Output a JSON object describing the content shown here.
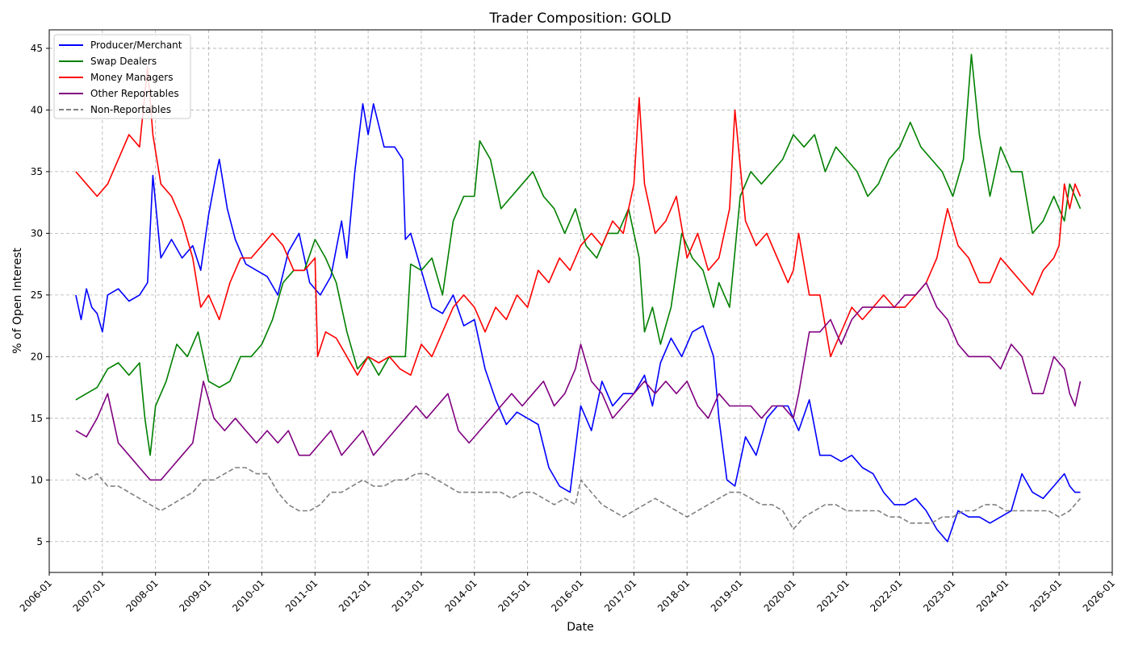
{
  "chart_data": {
    "type": "line",
    "title": "Trader Composition: GOLD",
    "xlabel": "Date",
    "ylabel": "% of Open Interest",
    "xlim": [
      2006.0,
      2026.0
    ],
    "ylim": [
      2.5,
      46.5
    ],
    "x_ticks": [
      "2006-01",
      "2007-01",
      "2008-01",
      "2009-01",
      "2010-01",
      "2011-01",
      "2012-01",
      "2013-01",
      "2014-01",
      "2015-01",
      "2016-01",
      "2017-01",
      "2018-01",
      "2019-01",
      "2020-01",
      "2021-01",
      "2022-01",
      "2023-01",
      "2024-01",
      "2025-01",
      "2026-01"
    ],
    "y_ticks": [
      5,
      10,
      15,
      20,
      25,
      30,
      35,
      40,
      45
    ],
    "grid": true,
    "legend_position": "top-left",
    "series": [
      {
        "name": "Producer/Merchant",
        "color": "#0000ff",
        "dash": "solid",
        "x": [
          2006.5,
          2006.6,
          2006.7,
          2006.8,
          2006.9,
          2007.0,
          2007.1,
          2007.3,
          2007.5,
          2007.7,
          2007.85,
          2007.95,
          2008.1,
          2008.3,
          2008.5,
          2008.7,
          2008.85,
          2009.0,
          2009.15,
          2009.2,
          2009.35,
          2009.5,
          2009.7,
          2009.9,
          2010.1,
          2010.3,
          2010.5,
          2010.7,
          2010.9,
          2011.1,
          2011.3,
          2011.5,
          2011.6,
          2011.75,
          2011.9,
          2012.0,
          2012.1,
          2012.3,
          2012.5,
          2012.65,
          2012.7,
          2012.8,
          2013.0,
          2013.2,
          2013.4,
          2013.6,
          2013.8,
          2014.0,
          2014.2,
          2014.4,
          2014.6,
          2014.8,
          2015.0,
          2015.2,
          2015.4,
          2015.6,
          2015.8,
          2016.0,
          2016.2,
          2016.4,
          2016.6,
          2016.8,
          2017.0,
          2017.2,
          2017.35,
          2017.5,
          2017.7,
          2017.9,
          2018.1,
          2018.3,
          2018.5,
          2018.6,
          2018.75,
          2018.9,
          2019.1,
          2019.3,
          2019.5,
          2019.7,
          2019.9,
          2020.1,
          2020.3,
          2020.5,
          2020.7,
          2020.9,
          2021.1,
          2021.3,
          2021.5,
          2021.7,
          2021.9,
          2022.1,
          2022.3,
          2022.5,
          2022.7,
          2022.9,
          2023.1,
          2023.3,
          2023.5,
          2023.7,
          2023.9,
          2024.1,
          2024.3,
          2024.5,
          2024.7,
          2024.9,
          2025.1,
          2025.2,
          2025.3,
          2025.4
        ],
        "values": [
          25,
          23,
          25.5,
          24,
          23.5,
          22,
          25,
          25.5,
          24.5,
          25,
          26,
          34.7,
          28,
          29.5,
          28,
          29,
          27,
          31.5,
          35,
          36,
          32,
          29.5,
          27.5,
          27,
          26.5,
          25,
          28.5,
          30,
          26,
          25,
          26.5,
          31,
          28,
          35,
          40.5,
          38,
          40.5,
          37,
          37,
          36,
          29.5,
          30,
          27,
          24,
          23.5,
          25,
          22.5,
          23,
          19,
          16.5,
          14.5,
          15.5,
          15,
          14.5,
          11,
          9.5,
          9,
          16,
          14,
          18,
          16,
          17,
          17,
          18.5,
          16,
          19.5,
          21.5,
          20,
          22,
          22.5,
          20,
          15,
          10,
          9.5,
          13.5,
          12,
          15,
          16,
          16,
          14,
          16.5,
          12,
          12,
          11.5,
          12,
          11,
          10.5,
          9,
          8,
          8,
          8.5,
          7.5,
          6,
          5,
          7.5,
          7,
          7,
          6.5,
          7,
          7.5,
          10.5,
          9,
          8.5,
          9.5,
          10.5,
          9.5,
          9,
          9
        ]
      },
      {
        "name": "Swap Dealers",
        "color": "#008000",
        "dash": "solid",
        "x": [
          2006.5,
          2006.7,
          2006.9,
          2007.1,
          2007.3,
          2007.5,
          2007.7,
          2007.8,
          2007.9,
          2008.0,
          2008.2,
          2008.4,
          2008.6,
          2008.8,
          2009.0,
          2009.2,
          2009.4,
          2009.6,
          2009.8,
          2010.0,
          2010.2,
          2010.4,
          2010.6,
          2010.8,
          2011.0,
          2011.2,
          2011.4,
          2011.6,
          2011.8,
          2012.0,
          2012.2,
          2012.4,
          2012.6,
          2012.7,
          2012.8,
          2013.0,
          2013.2,
          2013.4,
          2013.6,
          2013.8,
          2014.0,
          2014.1,
          2014.3,
          2014.5,
          2014.7,
          2014.9,
          2015.1,
          2015.3,
          2015.5,
          2015.7,
          2015.9,
          2016.1,
          2016.3,
          2016.5,
          2016.7,
          2016.9,
          2017.1,
          2017.2,
          2017.35,
          2017.5,
          2017.7,
          2017.9,
          2018.1,
          2018.3,
          2018.5,
          2018.6,
          2018.8,
          2019.0,
          2019.2,
          2019.4,
          2019.6,
          2019.8,
          2020.0,
          2020.2,
          2020.4,
          2020.6,
          2020.8,
          2021.0,
          2021.2,
          2021.4,
          2021.6,
          2021.8,
          2022.0,
          2022.2,
          2022.4,
          2022.6,
          2022.8,
          2023.0,
          2023.2,
          2023.35,
          2023.5,
          2023.7,
          2023.9,
          2024.1,
          2024.3,
          2024.5,
          2024.7,
          2024.9,
          2025.1,
          2025.2,
          2025.3,
          2025.4
        ],
        "values": [
          16.5,
          17,
          17.5,
          19,
          19.5,
          18.5,
          19.5,
          15,
          12,
          16,
          18,
          21,
          20,
          22,
          18,
          17.5,
          18,
          20,
          20,
          21,
          23,
          26,
          27,
          27,
          29.5,
          28,
          26,
          22,
          19,
          20,
          18.5,
          20,
          20,
          20,
          27.5,
          27,
          28,
          25,
          31,
          33,
          33,
          37.5,
          36,
          32,
          33,
          34,
          35,
          33,
          32,
          30,
          32,
          29,
          28,
          30,
          30,
          32,
          28,
          22,
          24,
          21,
          24,
          30,
          28,
          27,
          24,
          26,
          24,
          33,
          35,
          34,
          35,
          36,
          38,
          37,
          38,
          35,
          37,
          36,
          35,
          33,
          34,
          36,
          37,
          39,
          37,
          36,
          35,
          33,
          36,
          44.5,
          38,
          33,
          37,
          35,
          35,
          30,
          31,
          33,
          31,
          34,
          33,
          32
        ]
      },
      {
        "name": "Money Managers",
        "color": "#ff0000",
        "dash": "solid",
        "x": [
          2006.5,
          2006.7,
          2006.9,
          2007.1,
          2007.3,
          2007.5,
          2007.7,
          2007.85,
          2007.95,
          2008.1,
          2008.3,
          2008.5,
          2008.7,
          2008.85,
          2009.0,
          2009.2,
          2009.4,
          2009.6,
          2009.8,
          2010.0,
          2010.2,
          2010.4,
          2010.6,
          2010.8,
          2011.0,
          2011.05,
          2011.2,
          2011.4,
          2011.6,
          2011.8,
          2012.0,
          2012.2,
          2012.4,
          2012.6,
          2012.8,
          2013.0,
          2013.2,
          2013.4,
          2013.6,
          2013.8,
          2014.0,
          2014.2,
          2014.4,
          2014.6,
          2014.8,
          2015.0,
          2015.2,
          2015.4,
          2015.6,
          2015.8,
          2016.0,
          2016.2,
          2016.4,
          2016.6,
          2016.8,
          2017.0,
          2017.1,
          2017.2,
          2017.4,
          2017.6,
          2017.8,
          2018.0,
          2018.2,
          2018.4,
          2018.6,
          2018.8,
          2018.9,
          2019.1,
          2019.3,
          2019.5,
          2019.7,
          2019.9,
          2020.0,
          2020.1,
          2020.3,
          2020.5,
          2020.7,
          2020.9,
          2021.1,
          2021.3,
          2021.5,
          2021.7,
          2021.9,
          2022.1,
          2022.3,
          2022.5,
          2022.7,
          2022.9,
          2023.1,
          2023.3,
          2023.5,
          2023.7,
          2023.9,
          2024.1,
          2024.3,
          2024.5,
          2024.7,
          2024.9,
          2025.0,
          2025.1,
          2025.2,
          2025.3,
          2025.4
        ],
        "values": [
          35,
          34,
          33,
          34,
          36,
          38,
          37,
          43.5,
          38,
          34,
          33,
          31,
          28,
          24,
          25,
          23,
          26,
          28,
          28,
          29,
          30,
          29,
          27,
          27,
          28,
          20,
          22,
          21.5,
          20,
          18.5,
          20,
          19.5,
          20,
          19,
          18.5,
          21,
          20,
          22,
          24,
          25,
          24,
          22,
          24,
          23,
          25,
          24,
          27,
          26,
          28,
          27,
          29,
          30,
          29,
          31,
          30,
          34,
          41,
          34,
          30,
          31,
          33,
          28,
          30,
          27,
          28,
          32,
          40,
          31,
          29,
          30,
          28,
          26,
          27,
          30,
          25,
          25,
          20,
          22,
          24,
          23,
          24,
          25,
          24,
          24,
          25,
          26,
          28,
          32,
          29,
          28,
          26,
          26,
          28,
          27,
          26,
          25,
          27,
          28,
          29,
          34,
          32,
          34,
          33
        ]
      },
      {
        "name": "Other Reportables",
        "color": "#800080",
        "dash": "solid",
        "x": [
          2006.5,
          2006.7,
          2006.9,
          2007.1,
          2007.3,
          2007.5,
          2007.7,
          2007.9,
          2008.1,
          2008.3,
          2008.5,
          2008.7,
          2008.9,
          2009.1,
          2009.3,
          2009.5,
          2009.7,
          2009.9,
          2010.1,
          2010.3,
          2010.5,
          2010.7,
          2010.9,
          2011.1,
          2011.3,
          2011.5,
          2011.7,
          2011.9,
          2012.1,
          2012.3,
          2012.5,
          2012.7,
          2012.9,
          2013.1,
          2013.3,
          2013.5,
          2013.7,
          2013.9,
          2014.1,
          2014.3,
          2014.5,
          2014.7,
          2014.9,
          2015.1,
          2015.3,
          2015.5,
          2015.7,
          2015.9,
          2016.0,
          2016.2,
          2016.4,
          2016.6,
          2016.8,
          2017.0,
          2017.2,
          2017.4,
          2017.6,
          2017.8,
          2018.0,
          2018.2,
          2018.4,
          2018.6,
          2018.8,
          2019.0,
          2019.2,
          2019.4,
          2019.6,
          2019.8,
          2020.0,
          2020.1,
          2020.3,
          2020.5,
          2020.7,
          2020.9,
          2021.1,
          2021.3,
          2021.5,
          2021.7,
          2021.9,
          2022.1,
          2022.3,
          2022.5,
          2022.7,
          2022.9,
          2023.1,
          2023.3,
          2023.5,
          2023.7,
          2023.9,
          2024.1,
          2024.3,
          2024.5,
          2024.7,
          2024.9,
          2025.1,
          2025.2,
          2025.3,
          2025.4
        ],
        "values": [
          14,
          13.5,
          15,
          17,
          13,
          12,
          11,
          10,
          10,
          11,
          12,
          13,
          18,
          15,
          14,
          15,
          14,
          13,
          14,
          13,
          14,
          12,
          12,
          13,
          14,
          12,
          13,
          14,
          12,
          13,
          14,
          15,
          16,
          15,
          16,
          17,
          14,
          13,
          14,
          15,
          16,
          17,
          16,
          17,
          18,
          16,
          17,
          19,
          21,
          18,
          17,
          15,
          16,
          17,
          18,
          17,
          18,
          17,
          18,
          16,
          15,
          17,
          16,
          16,
          16,
          15,
          16,
          16,
          15,
          17,
          22,
          22,
          23,
          21,
          23,
          24,
          24,
          24,
          24,
          25,
          25,
          26,
          24,
          23,
          21,
          20,
          20,
          20,
          19,
          21,
          20,
          17,
          17,
          20,
          19,
          17,
          16,
          18
        ]
      },
      {
        "name": "Non-Reportables",
        "color": "#808080",
        "dash": "dashed",
        "x": [
          2006.5,
          2006.7,
          2006.9,
          2007.1,
          2007.3,
          2007.5,
          2007.7,
          2007.9,
          2008.1,
          2008.3,
          2008.5,
          2008.7,
          2008.9,
          2009.1,
          2009.3,
          2009.5,
          2009.7,
          2009.9,
          2010.1,
          2010.3,
          2010.5,
          2010.7,
          2010.9,
          2011.1,
          2011.3,
          2011.5,
          2011.7,
          2011.9,
          2012.1,
          2012.3,
          2012.5,
          2012.7,
          2012.9,
          2013.1,
          2013.3,
          2013.5,
          2013.7,
          2013.9,
          2014.1,
          2014.3,
          2014.5,
          2014.7,
          2014.9,
          2015.1,
          2015.3,
          2015.5,
          2015.7,
          2015.9,
          2016.0,
          2016.2,
          2016.4,
          2016.6,
          2016.8,
          2017.0,
          2017.2,
          2017.4,
          2017.6,
          2017.8,
          2018.0,
          2018.2,
          2018.4,
          2018.6,
          2018.8,
          2019.0,
          2019.2,
          2019.4,
          2019.6,
          2019.8,
          2020.0,
          2020.2,
          2020.4,
          2020.6,
          2020.8,
          2021.0,
          2021.2,
          2021.4,
          2021.6,
          2021.8,
          2022.0,
          2022.2,
          2022.4,
          2022.6,
          2022.8,
          2023.0,
          2023.2,
          2023.4,
          2023.6,
          2023.8,
          2024.0,
          2024.2,
          2024.4,
          2024.6,
          2024.8,
          2025.0,
          2025.2,
          2025.4
        ],
        "values": [
          10.5,
          10,
          10.5,
          9.5,
          9.5,
          9,
          8.5,
          8,
          7.5,
          8,
          8.5,
          9,
          10,
          10,
          10.5,
          11,
          11,
          10.5,
          10.5,
          9,
          8,
          7.5,
          7.5,
          8,
          9,
          9,
          9.5,
          10,
          9.5,
          9.5,
          10,
          10,
          10.5,
          10.5,
          10,
          9.5,
          9,
          9,
          9,
          9,
          9,
          8.5,
          9,
          9,
          8.5,
          8,
          8.5,
          8,
          10,
          9,
          8,
          7.5,
          7,
          7.5,
          8,
          8.5,
          8,
          7.5,
          7,
          7.5,
          8,
          8.5,
          9,
          9,
          8.5,
          8,
          8,
          7.5,
          6,
          7,
          7.5,
          8,
          8,
          7.5,
          7.5,
          7.5,
          7.5,
          7,
          7,
          6.5,
          6.5,
          6.5,
          7,
          7,
          7.5,
          7.5,
          8,
          8,
          7.5,
          7.5,
          7.5,
          7.5,
          7.5,
          7,
          7.5,
          8.5
        ]
      }
    ]
  }
}
